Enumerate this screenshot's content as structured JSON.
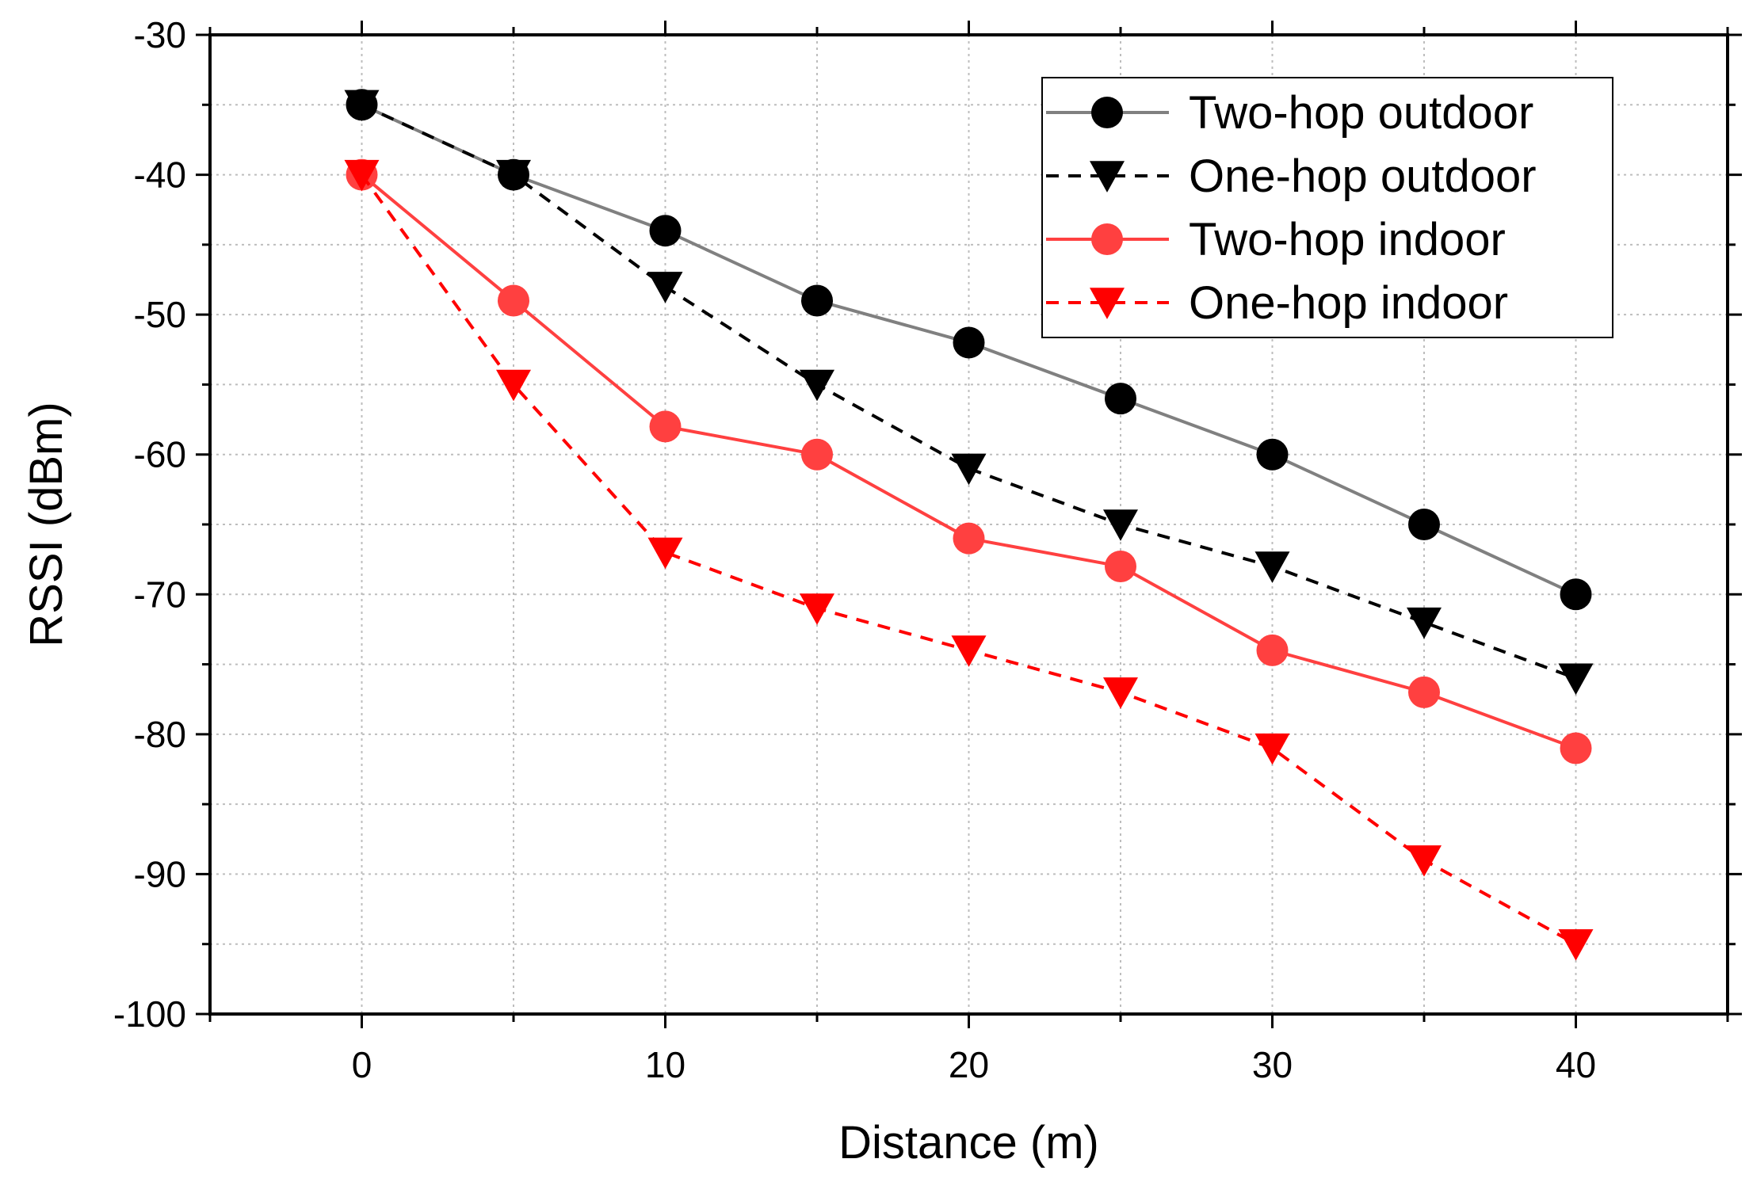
{
  "chart_data": {
    "type": "line",
    "title": "",
    "xlabel": "Distance (m)",
    "ylabel": "RSSI (dBm)",
    "xlim": [
      -5,
      45
    ],
    "ylim": [
      -100,
      -30
    ],
    "xticks": [
      0,
      10,
      20,
      30,
      40
    ],
    "yticks": [
      -30,
      -40,
      -50,
      -60,
      -70,
      -80,
      -90,
      -100
    ],
    "grid": true,
    "legend_position": "top-right",
    "x": [
      0,
      5,
      10,
      15,
      20,
      25,
      30,
      35,
      40
    ],
    "series": [
      {
        "name": "Two-hop outdoor",
        "color": "#808080",
        "marker_color": "#000000",
        "marker": "circle",
        "line_style": "solid",
        "values": [
          -35,
          -40,
          -44,
          -49,
          -52,
          -56,
          -60,
          -65,
          -70
        ]
      },
      {
        "name": "One-hop outdoor",
        "color": "#000000",
        "marker_color": "#000000",
        "marker": "triangle-down",
        "line_style": "dashed",
        "values": [
          -35,
          -40,
          -48,
          -55,
          -61,
          -65,
          -68,
          -72,
          -76
        ]
      },
      {
        "name": "Two-hop indoor",
        "color": "#ff4040",
        "marker_color": "#ff4040",
        "marker": "circle",
        "line_style": "solid",
        "values": [
          -40,
          -49,
          -58,
          -60,
          -66,
          -68,
          -74,
          -77,
          -81
        ]
      },
      {
        "name": "One-hop indoor",
        "color": "#ff0000",
        "marker_color": "#ff0000",
        "marker": "triangle-down",
        "line_style": "dashed",
        "values": [
          -40,
          -55,
          -67,
          -71,
          -74,
          -77,
          -81,
          -89,
          -95
        ]
      }
    ]
  }
}
